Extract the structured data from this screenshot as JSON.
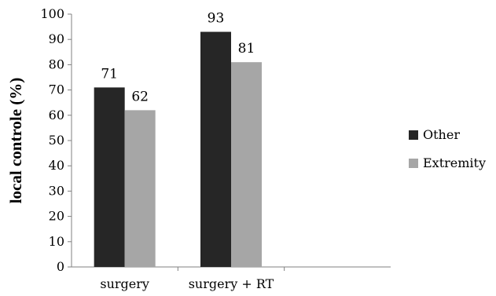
{
  "chart_data": {
    "type": "bar",
    "title": "",
    "xlabel": "",
    "ylabel": "local controle (%)",
    "ylim": [
      0,
      100
    ],
    "ytick_step": 10,
    "grid": false,
    "legend_position": "right",
    "categories": [
      "surgery",
      "surgery + RT"
    ],
    "series": [
      {
        "name": "Other",
        "values": [
          71,
          93
        ],
        "color": "#262626"
      },
      {
        "name": "Extremity",
        "values": [
          62,
          81
        ],
        "color": "#a6a6a6"
      }
    ],
    "slot_count": 3
  }
}
